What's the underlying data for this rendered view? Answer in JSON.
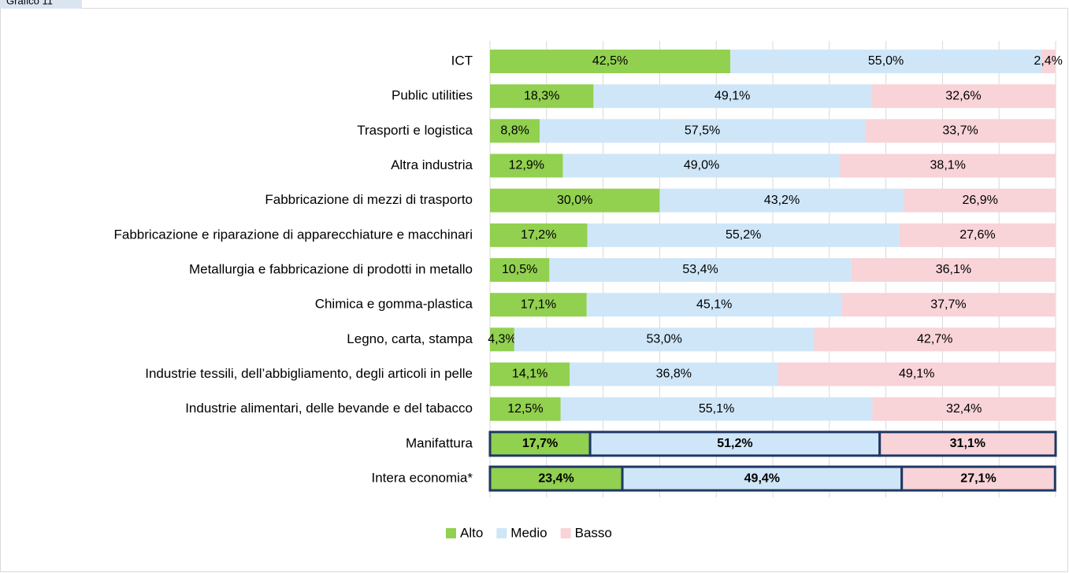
{
  "tab": "Grafico 11",
  "chart_data": {
    "type": "stacked-bar-horizontal",
    "categories": [
      "ICT",
      "Public utilities",
      "Trasporti e logistica",
      "Altra industria",
      "Fabbricazione di mezzi di trasporto",
      "Fabbricazione e riparazione di apparecchiature e macchinari",
      "Metallurgia e fabbricazione di prodotti in metallo",
      "Chimica e gomma-plastica",
      "Legno, carta, stampa",
      "Industrie tessili, dell’abbigliamento, degli articoli in pelle",
      "Industrie alimentari, delle bevande e del tabacco",
      "Manifattura",
      "Intera economia*"
    ],
    "series": [
      {
        "name": "Alto",
        "color": "#92d050",
        "values": [
          42.5,
          18.3,
          8.8,
          12.9,
          30.0,
          17.2,
          10.5,
          17.1,
          4.3,
          14.1,
          12.5,
          17.7,
          23.4
        ],
        "value_labels": [
          "42,5%",
          "18,3%",
          "8,8%",
          "12,9%",
          "30,0%",
          "17,2%",
          "10,5%",
          "17,1%",
          "4,3%",
          "14,1%",
          "12,5%",
          "17,7%",
          "23,4%"
        ]
      },
      {
        "name": "Medio",
        "color": "#cfe6f8",
        "values": [
          55.0,
          49.1,
          57.5,
          49.0,
          43.2,
          55.2,
          53.4,
          45.1,
          53.0,
          36.8,
          55.1,
          51.2,
          49.4
        ],
        "value_labels": [
          "55,0%",
          "49,1%",
          "57,5%",
          "49,0%",
          "43,2%",
          "55,2%",
          "53,4%",
          "45,1%",
          "53,0%",
          "36,8%",
          "55,1%",
          "51,2%",
          "49,4%"
        ]
      },
      {
        "name": "Basso",
        "color": "#f8d3d8",
        "values": [
          2.4,
          32.6,
          33.7,
          38.1,
          26.9,
          27.6,
          36.1,
          37.7,
          42.7,
          49.1,
          32.4,
          31.1,
          27.1
        ],
        "value_labels": [
          "2,4%",
          "32,6%",
          "33,7%",
          "38,1%",
          "26,9%",
          "27,6%",
          "36,1%",
          "37,7%",
          "42,7%",
          "49,1%",
          "32,4%",
          "31,1%",
          "27,1%"
        ]
      }
    ],
    "xlim": [
      0,
      100
    ],
    "xticks": [
      0,
      10,
      20,
      30,
      40,
      50,
      60,
      70,
      80,
      90,
      100
    ],
    "grid": true,
    "highlight_rows": [
      11,
      12
    ],
    "highlight_color": "#1f3864",
    "legend": "bottom"
  }
}
